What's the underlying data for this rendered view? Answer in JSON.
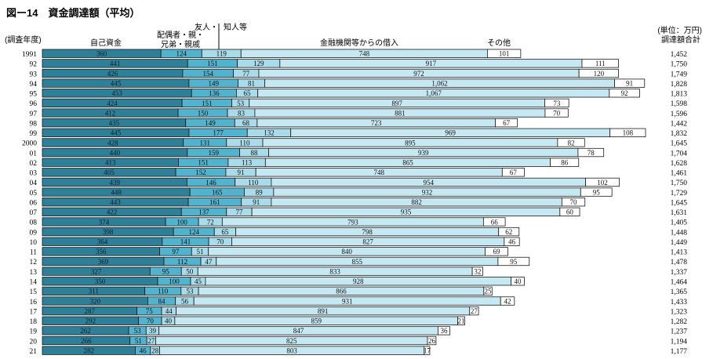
{
  "header": {
    "title": "図ー14　資金調達額（平均）",
    "unit": "(単位：万円)",
    "total_label": "調達額合計",
    "year_label": "(調査年度)"
  },
  "chart_data": {
    "type": "bar",
    "stacked": true,
    "orientation": "horizontal",
    "title": "図ー14　資金調達額（平均）",
    "xlabel": "",
    "ylabel": "(調査年度)",
    "categories": [
      "1991",
      "92",
      "93",
      "94",
      "95",
      "96",
      "97",
      "98",
      "99",
      "2000",
      "01",
      "02",
      "03",
      "04",
      "05",
      "06",
      "07",
      "08",
      "09",
      "10",
      "11",
      "12",
      "13",
      "14",
      "15",
      "16",
      "17",
      "18",
      "19",
      "20",
      "21"
    ],
    "series": [
      {
        "name": "自己資金",
        "color": "#2e7f98",
        "values": [
          360,
          441,
          426,
          445,
          453,
          424,
          412,
          435,
          445,
          428,
          440,
          413,
          405,
          439,
          448,
          443,
          422,
          374,
          398,
          364,
          356,
          369,
          327,
          350,
          311,
          320,
          287,
          292,
          262,
          266,
          282
        ]
      },
      {
        "name": "配偶者・親・兄弟・親戚",
        "color": "#52b3cf",
        "values": [
          124,
          151,
          154,
          149,
          136,
          151,
          150,
          149,
          177,
          131,
          159,
          151,
          152,
          146,
          165,
          161,
          137,
          100,
          124,
          141,
          97,
          112,
          95,
          100,
          110,
          84,
          75,
          70,
          53,
          51,
          46
        ]
      },
      {
        "name": "友人・知人等",
        "color": "#a9dbea",
        "values": [
          119,
          129,
          77,
          81,
          65,
          53,
          83,
          68,
          132,
          110,
          88,
          113,
          91,
          110,
          89,
          91,
          77,
          72,
          65,
          70,
          51,
          47,
          50,
          45,
          53,
          56,
          44,
          40,
          39,
          27,
          28
        ]
      },
      {
        "name": "金融機関等からの借入",
        "color": "#c6e8f3",
        "values": [
          748,
          917,
          972,
          1062,
          1067,
          897,
          881,
          723,
          969,
          895,
          939,
          865,
          748,
          954,
          932,
          882,
          935,
          793,
          798,
          827,
          840,
          855,
          833,
          928,
          866,
          931,
          891,
          859,
          847,
          825,
          803
        ]
      },
      {
        "name": "その他",
        "color": "#ffffff",
        "values": [
          101,
          111,
          120,
          91,
          92,
          73,
          70,
          67,
          108,
          82,
          78,
          86,
          67,
          102,
          95,
          70,
          60,
          66,
          62,
          46,
          69,
          95,
          32,
          40,
          25,
          42,
          27,
          21,
          36,
          26,
          17
        ]
      }
    ],
    "totals": [
      "1,452",
      "1,750",
      "1,749",
      "1,828",
      "1,813",
      "1,598",
      "1,596",
      "1,442",
      "1,832",
      "1,645",
      "1,704",
      "1,628",
      "1,461",
      "1,750",
      "1,729",
      "1,645",
      "1,631",
      "1,405",
      "1,448",
      "1,449",
      "1,413",
      "1,478",
      "1,337",
      "1,464",
      "1,365",
      "1,433",
      "1,323",
      "1,282",
      "1,237",
      "1,194",
      "1,177"
    ],
    "legend_labels": {
      "own": "自己資金",
      "family_1": "配偶者・親・",
      "family_2": "兄弟・親戚",
      "friend_1": "友人・",
      "friend_2": "知人等",
      "loan": "金融機関等からの借入",
      "other": "その他"
    },
    "grid": false
  }
}
